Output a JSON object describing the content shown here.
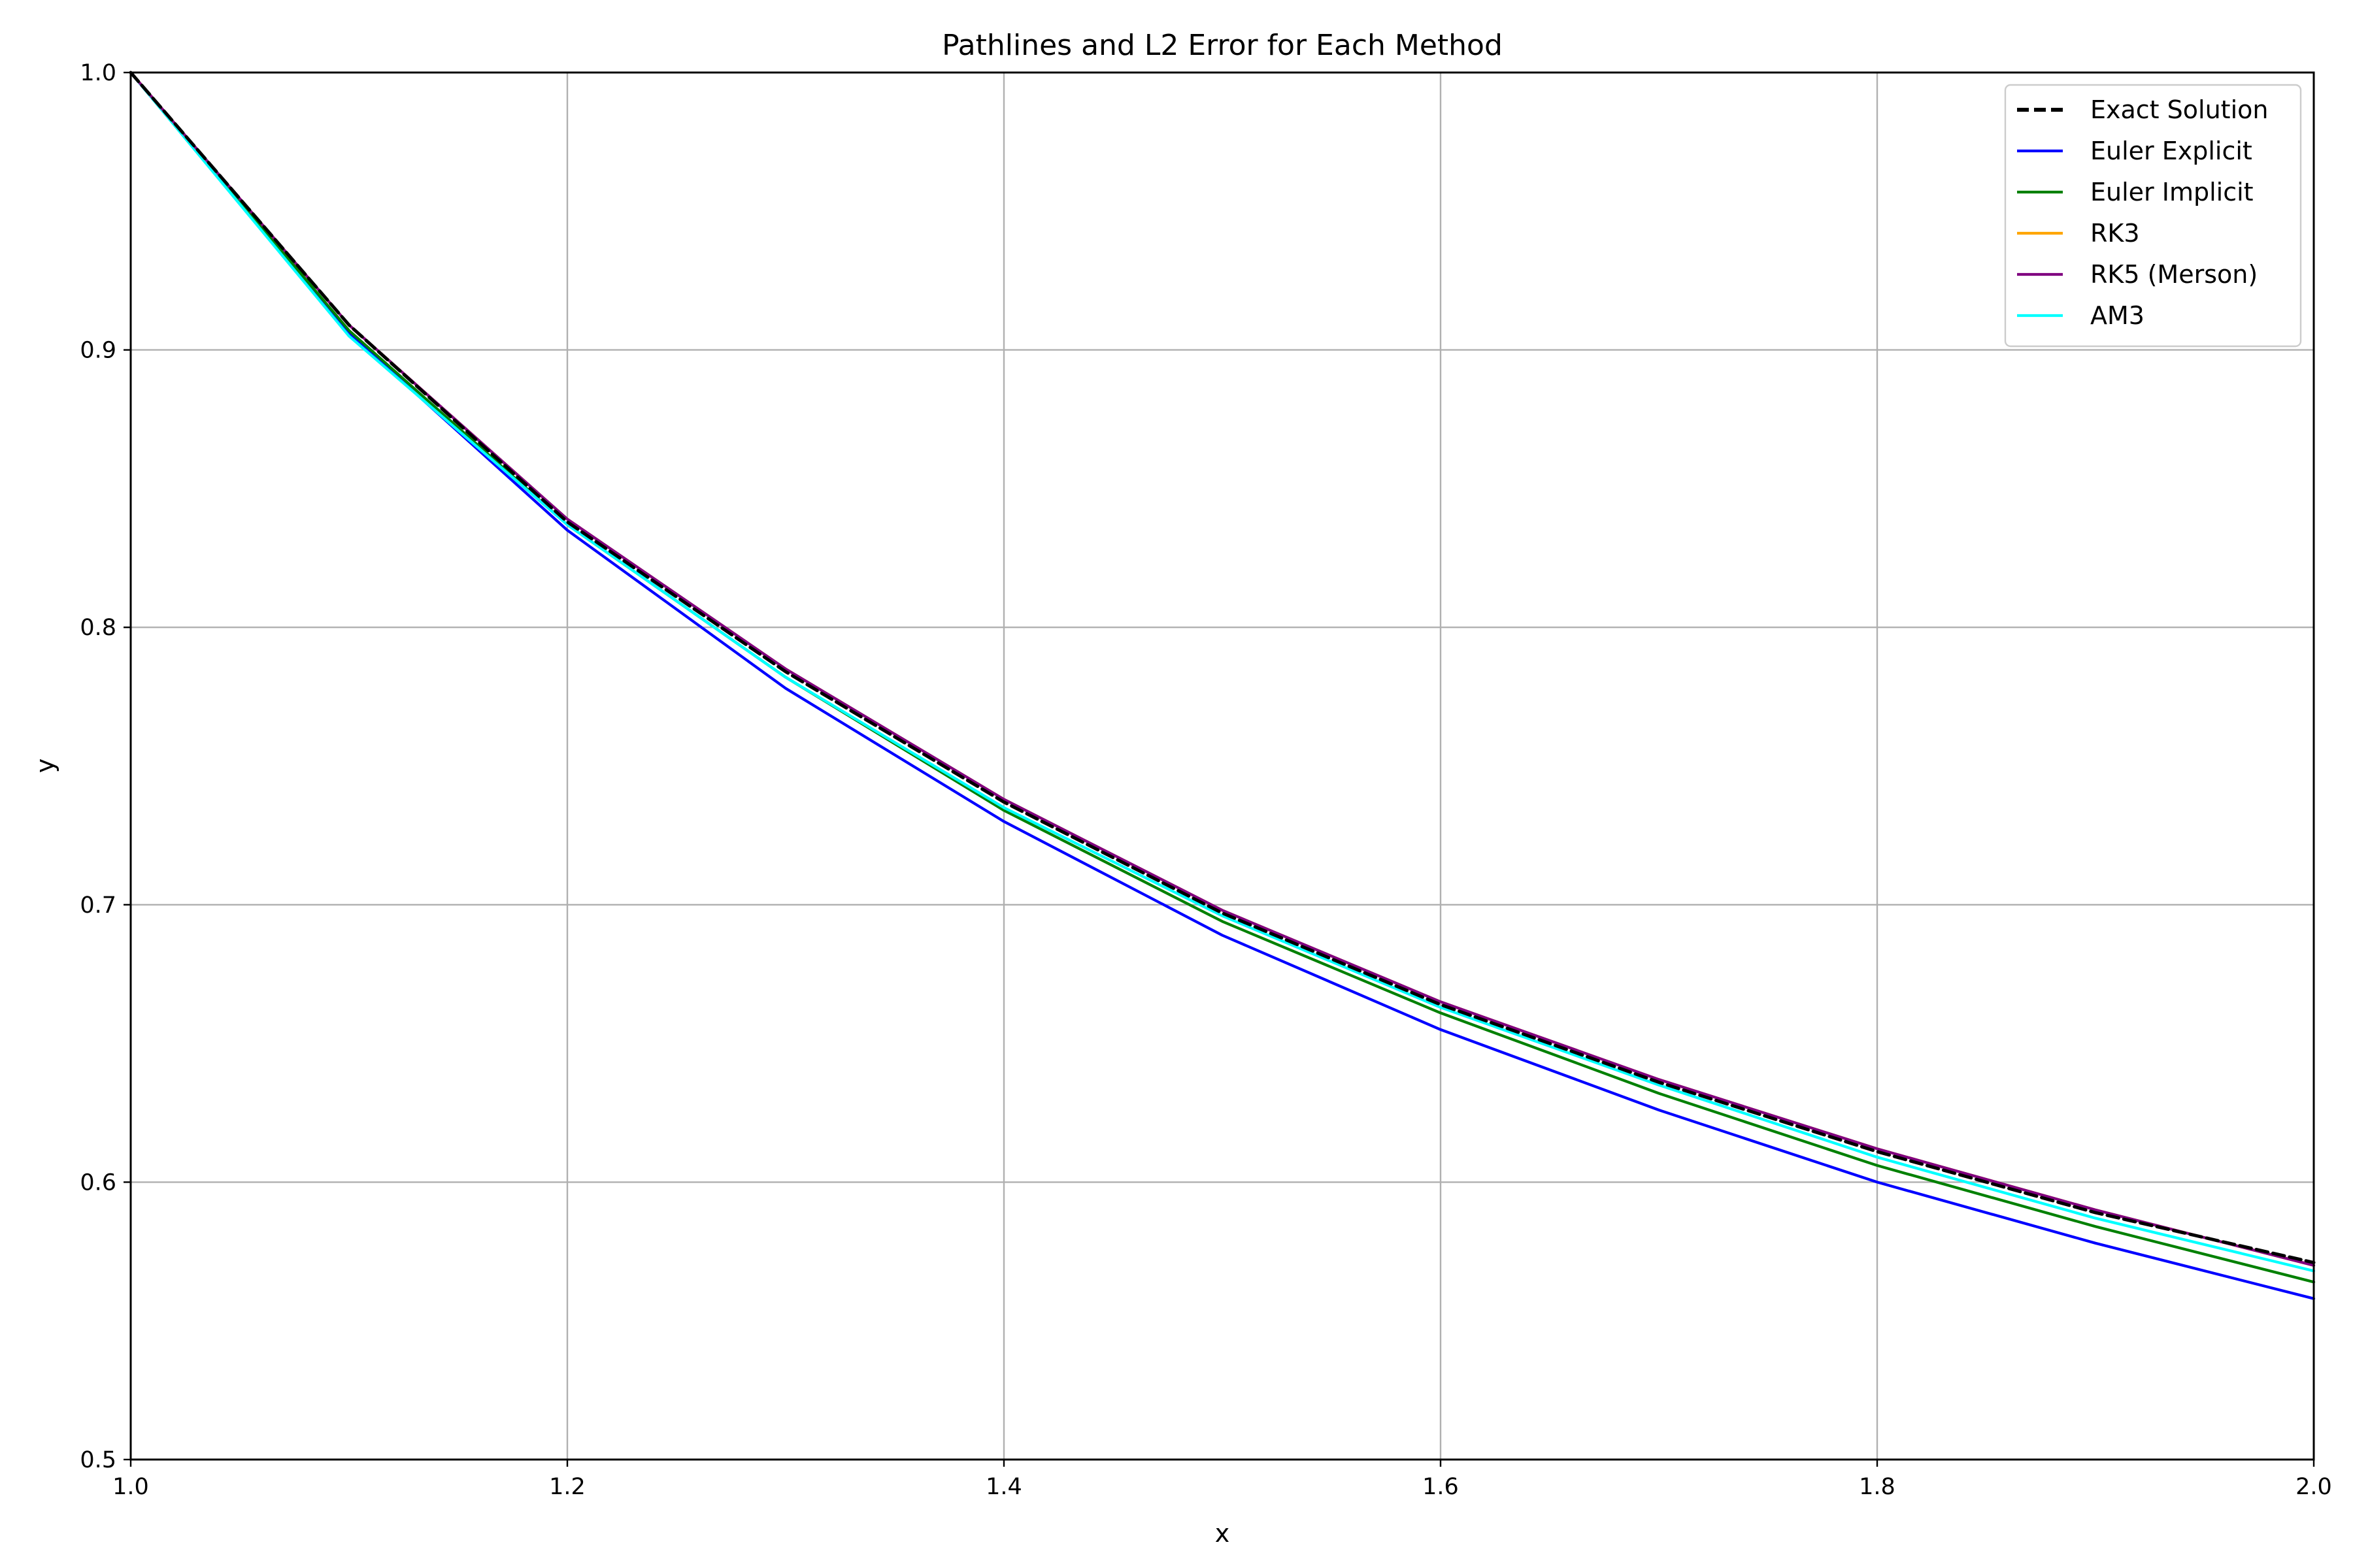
{
  "chart_data": {
    "type": "line",
    "title": "Pathlines and L2 Error for Each Method",
    "xlabel": "x",
    "ylabel": "y",
    "xlim": [
      1.0,
      2.0
    ],
    "ylim": [
      0.5,
      1.0
    ],
    "xticks": [
      "1.0",
      "1.2",
      "1.4",
      "1.6",
      "1.8",
      "2.0"
    ],
    "yticks": [
      "0.5",
      "0.6",
      "0.7",
      "0.8",
      "0.9",
      "1.0"
    ],
    "grid": true,
    "legend_position": "top-right",
    "x": [
      1.0,
      1.1,
      1.2,
      1.3,
      1.4,
      1.5,
      1.6,
      1.7,
      1.8,
      1.9,
      2.0
    ],
    "series": [
      {
        "name": "Exact Solution",
        "color": "#000000",
        "style": "dashed",
        "values": [
          1.0,
          0.909,
          0.838,
          0.784,
          0.737,
          0.697,
          0.664,
          0.636,
          0.611,
          0.589,
          0.571
        ]
      },
      {
        "name": "Euler Explicit",
        "color": "#0000ff",
        "style": "solid",
        "values": [
          1.0,
          0.906,
          0.835,
          0.778,
          0.73,
          0.689,
          0.655,
          0.626,
          0.6,
          0.578,
          0.558
        ]
      },
      {
        "name": "Euler Implicit",
        "color": "#008000",
        "style": "solid",
        "values": [
          1.0,
          0.907,
          0.837,
          0.782,
          0.734,
          0.694,
          0.661,
          0.632,
          0.606,
          0.584,
          0.564
        ]
      },
      {
        "name": "RK3",
        "color": "#ffa500",
        "style": "solid",
        "values": [
          1.0,
          0.909,
          0.839,
          0.785,
          0.738,
          0.698,
          0.665,
          0.637,
          0.612,
          0.59,
          0.57
        ]
      },
      {
        "name": "RK5 (Merson)",
        "color": "#800080",
        "style": "solid",
        "values": [
          1.0,
          0.909,
          0.839,
          0.785,
          0.738,
          0.698,
          0.665,
          0.637,
          0.612,
          0.59,
          0.57
        ]
      },
      {
        "name": "AM3",
        "color": "#00ffff",
        "style": "solid",
        "values": [
          1.0,
          0.905,
          0.837,
          0.782,
          0.735,
          0.696,
          0.663,
          0.635,
          0.609,
          0.587,
          0.568
        ]
      }
    ]
  }
}
